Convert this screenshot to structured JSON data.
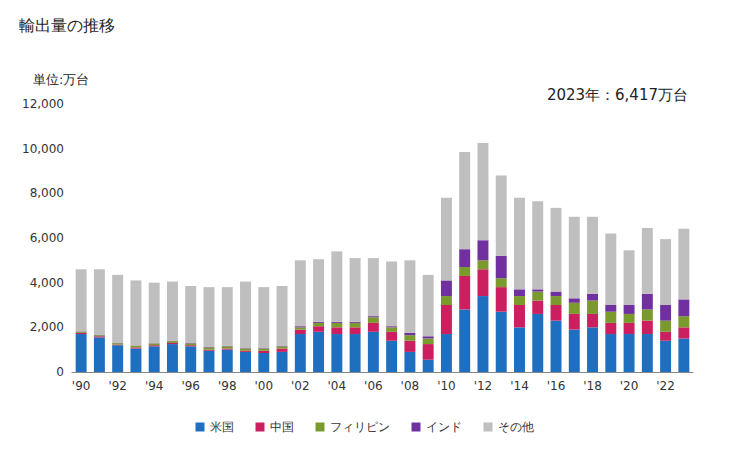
{
  "chart_data": {
    "type": "bar",
    "title": "輸出量の推移",
    "y_label": "単位:万台",
    "annotation": "2023年：6,417万台",
    "stacked": true,
    "grid": false,
    "legend": "bottom",
    "categories": [
      "'90",
      null,
      "'92",
      null,
      "'94",
      null,
      "'96",
      null,
      "'98",
      null,
      "'00",
      null,
      "'02",
      null,
      "'04",
      null,
      "'06",
      null,
      "'08",
      null,
      "'10",
      null,
      "'12",
      null,
      "'14",
      null,
      "'16",
      null,
      "'18",
      null,
      "'20",
      null,
      "'22",
      null
    ],
    "ylim": [
      0,
      12000
    ],
    "yticks": [
      0,
      {
        "value": 2000,
        "label": "2,000"
      },
      {
        "value": 4000,
        "label": "4,000"
      },
      {
        "value": 6000,
        "label": "6,000"
      },
      {
        "value": 8000,
        "label": "8,000"
      },
      {
        "value": 10000,
        "label": "10,000"
      },
      {
        "value": 12000,
        "label": "12,000"
      }
    ],
    "series": [
      {
        "name": "米国",
        "color": "#1f6fc0",
        "values": [
          1700,
          1550,
          1200,
          1050,
          1150,
          1250,
          1150,
          950,
          1000,
          900,
          850,
          900,
          1700,
          1800,
          1700,
          1700,
          1800,
          1400,
          900,
          550,
          1700,
          2800,
          3400,
          2700,
          2000,
          2600,
          2300,
          1900,
          2000,
          1700,
          1700,
          1700,
          1400,
          1500
        ]
      },
      {
        "name": "中国",
        "color": "#cc1f5f",
        "values": [
          50,
          50,
          30,
          50,
          50,
          50,
          50,
          50,
          50,
          50,
          100,
          150,
          200,
          250,
          300,
          300,
          400,
          400,
          500,
          700,
          1300,
          1500,
          1200,
          1100,
          1000,
          600,
          700,
          700,
          600,
          500,
          500,
          600,
          400,
          500
        ]
      },
      {
        "name": "フィリピン",
        "color": "#7a9a2e",
        "values": [
          50,
          50,
          60,
          80,
          80,
          80,
          80,
          100,
          100,
          100,
          100,
          100,
          100,
          150,
          200,
          200,
          250,
          200,
          250,
          250,
          400,
          400,
          400,
          400,
          400,
          400,
          400,
          500,
          600,
          500,
          400,
          500,
          500,
          500
        ]
      },
      {
        "name": "インド",
        "color": "#7030a0",
        "values": [
          20,
          20,
          10,
          10,
          10,
          20,
          20,
          20,
          20,
          20,
          20,
          30,
          50,
          50,
          50,
          50,
          50,
          50,
          100,
          100,
          700,
          800,
          900,
          1000,
          300,
          100,
          200,
          200,
          300,
          300,
          400,
          700,
          700,
          750
        ]
      },
      {
        "name": "その他",
        "color": "#bfbfbf",
        "values": [
          2780,
          2930,
          3050,
          2910,
          2710,
          2650,
          2550,
          2680,
          2630,
          2980,
          2730,
          2670,
          2950,
          2800,
          3150,
          2850,
          2600,
          2900,
          3250,
          2750,
          3700,
          4350,
          4350,
          3600,
          4100,
          3950,
          3750,
          3650,
          3450,
          3200,
          2450,
          2950,
          2950,
          3167
        ]
      }
    ]
  }
}
